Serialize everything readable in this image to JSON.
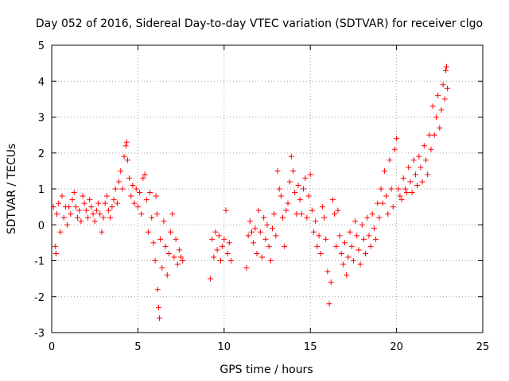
{
  "chart_data": {
    "type": "scatter",
    "title": "Day 052 of 2016, Sidereal Day-to-day VTEC variation (SDTVAR) for receiver clgo",
    "xlabel": "GPS time / hours",
    "ylabel": "SDTVAR / TECUs",
    "xlim": [
      0,
      25
    ],
    "ylim": [
      -3,
      5
    ],
    "xticks": [
      "0",
      "5",
      "10",
      "15",
      "20",
      "25"
    ],
    "yticks": [
      "-3",
      "-2",
      "-1",
      "0",
      "1",
      "2",
      "3",
      "4",
      "5"
    ],
    "grid": true,
    "marker": "+",
    "color": "#ff0000",
    "series": [
      {
        "name": "SDTVAR",
        "points": [
          [
            0.1,
            0.5
          ],
          [
            0.2,
            -0.6
          ],
          [
            0.25,
            -0.8
          ],
          [
            0.3,
            0.3
          ],
          [
            0.4,
            0.6
          ],
          [
            0.5,
            -0.2
          ],
          [
            0.6,
            0.8
          ],
          [
            0.7,
            0.2
          ],
          [
            0.8,
            0.5
          ],
          [
            0.9,
            0.0
          ],
          [
            1.0,
            0.5
          ],
          [
            1.1,
            0.3
          ],
          [
            1.2,
            0.7
          ],
          [
            1.3,
            0.9
          ],
          [
            1.4,
            0.5
          ],
          [
            1.5,
            0.2
          ],
          [
            1.6,
            0.4
          ],
          [
            1.7,
            0.1
          ],
          [
            1.8,
            0.8
          ],
          [
            1.9,
            0.6
          ],
          [
            2.0,
            0.4
          ],
          [
            2.1,
            0.2
          ],
          [
            2.2,
            0.7
          ],
          [
            2.3,
            0.5
          ],
          [
            2.4,
            0.3
          ],
          [
            2.5,
            0.1
          ],
          [
            2.6,
            0.4
          ],
          [
            2.7,
            0.6
          ],
          [
            2.8,
            0.3
          ],
          [
            2.9,
            -0.2
          ],
          [
            3.0,
            0.2
          ],
          [
            3.1,
            0.6
          ],
          [
            3.2,
            0.8
          ],
          [
            3.3,
            0.4
          ],
          [
            3.4,
            0.2
          ],
          [
            3.5,
            0.5
          ],
          [
            3.6,
            0.7
          ],
          [
            3.7,
            1.0
          ],
          [
            3.8,
            0.6
          ],
          [
            3.9,
            1.2
          ],
          [
            4.0,
            1.5
          ],
          [
            4.1,
            1.0
          ],
          [
            4.2,
            1.9
          ],
          [
            4.3,
            2.2
          ],
          [
            4.35,
            2.3
          ],
          [
            4.4,
            1.8
          ],
          [
            4.5,
            1.3
          ],
          [
            4.6,
            0.8
          ],
          [
            4.7,
            1.1
          ],
          [
            4.8,
            0.6
          ],
          [
            4.9,
            1.0
          ],
          [
            5.0,
            0.5
          ],
          [
            5.1,
            0.9
          ],
          [
            5.2,
            0.3
          ],
          [
            5.3,
            1.3
          ],
          [
            5.4,
            1.4
          ],
          [
            5.5,
            0.7
          ],
          [
            5.6,
            -0.2
          ],
          [
            5.7,
            0.9
          ],
          [
            5.8,
            0.2
          ],
          [
            5.9,
            -0.5
          ],
          [
            6.0,
            -1.0
          ],
          [
            6.05,
            0.8
          ],
          [
            6.1,
            0.3
          ],
          [
            6.15,
            -1.8
          ],
          [
            6.2,
            -2.3
          ],
          [
            6.25,
            -2.6
          ],
          [
            6.3,
            -0.4
          ],
          [
            6.4,
            -1.2
          ],
          [
            6.5,
            0.1
          ],
          [
            6.6,
            -0.6
          ],
          [
            6.7,
            -1.4
          ],
          [
            6.8,
            -0.8
          ],
          [
            6.9,
            -0.2
          ],
          [
            7.0,
            0.3
          ],
          [
            7.1,
            -0.9
          ],
          [
            7.2,
            -0.4
          ],
          [
            7.3,
            -1.1
          ],
          [
            7.4,
            -0.7
          ],
          [
            7.5,
            -0.9
          ],
          [
            7.6,
            -1.0
          ],
          [
            9.2,
            -1.5
          ],
          [
            9.3,
            -0.4
          ],
          [
            9.4,
            -0.9
          ],
          [
            9.5,
            -0.2
          ],
          [
            9.6,
            -0.7
          ],
          [
            9.7,
            -0.3
          ],
          [
            9.8,
            -1.0
          ],
          [
            9.9,
            -0.6
          ],
          [
            10.0,
            -0.4
          ],
          [
            10.1,
            0.4
          ],
          [
            10.2,
            -0.8
          ],
          [
            10.3,
            -0.5
          ],
          [
            10.4,
            -1.0
          ],
          [
            11.3,
            -1.2
          ],
          [
            11.4,
            -0.3
          ],
          [
            11.5,
            0.1
          ],
          [
            11.6,
            -0.2
          ],
          [
            11.7,
            -0.5
          ],
          [
            11.8,
            -0.1
          ],
          [
            11.9,
            -0.8
          ],
          [
            12.0,
            0.4
          ],
          [
            12.1,
            -0.2
          ],
          [
            12.2,
            -0.9
          ],
          [
            12.3,
            0.2
          ],
          [
            12.4,
            -0.4
          ],
          [
            12.5,
            0.0
          ],
          [
            12.6,
            -0.6
          ],
          [
            12.7,
            -1.0
          ],
          [
            12.8,
            -0.1
          ],
          [
            12.9,
            0.3
          ],
          [
            13.0,
            -0.3
          ],
          [
            13.1,
            1.5
          ],
          [
            13.2,
            1.0
          ],
          [
            13.3,
            0.8
          ],
          [
            13.4,
            0.2
          ],
          [
            13.5,
            -0.6
          ],
          [
            13.6,
            0.4
          ],
          [
            13.7,
            0.6
          ],
          [
            13.8,
            1.2
          ],
          [
            13.9,
            1.9
          ],
          [
            14.0,
            1.5
          ],
          [
            14.1,
            0.9
          ],
          [
            14.2,
            0.3
          ],
          [
            14.3,
            1.1
          ],
          [
            14.4,
            0.7
          ],
          [
            14.5,
            0.3
          ],
          [
            14.6,
            1.0
          ],
          [
            14.7,
            1.3
          ],
          [
            14.8,
            0.2
          ],
          [
            14.9,
            0.8
          ],
          [
            15.0,
            1.4
          ],
          [
            15.1,
            0.4
          ],
          [
            15.2,
            -0.2
          ],
          [
            15.3,
            0.1
          ],
          [
            15.4,
            -0.6
          ],
          [
            15.5,
            -0.3
          ],
          [
            15.6,
            -0.8
          ],
          [
            15.7,
            0.5
          ],
          [
            15.8,
            0.2
          ],
          [
            15.9,
            -0.4
          ],
          [
            16.0,
            -1.3
          ],
          [
            16.1,
            -2.2
          ],
          [
            16.2,
            -1.6
          ],
          [
            16.3,
            0.7
          ],
          [
            16.4,
            0.3
          ],
          [
            16.5,
            -0.6
          ],
          [
            16.6,
            0.4
          ],
          [
            16.7,
            -0.3
          ],
          [
            16.8,
            -0.8
          ],
          [
            16.9,
            -1.1
          ],
          [
            17.0,
            -0.5
          ],
          [
            17.1,
            -1.4
          ],
          [
            17.2,
            -0.9
          ],
          [
            17.3,
            -0.2
          ],
          [
            17.4,
            -0.6
          ],
          [
            17.5,
            -1.0
          ],
          [
            17.6,
            0.1
          ],
          [
            17.7,
            -0.3
          ],
          [
            17.8,
            -0.7
          ],
          [
            17.9,
            -1.1
          ],
          [
            18.0,
            0.0
          ],
          [
            18.1,
            -0.4
          ],
          [
            18.2,
            -0.8
          ],
          [
            18.3,
            0.2
          ],
          [
            18.4,
            -0.3
          ],
          [
            18.5,
            -0.6
          ],
          [
            18.6,
            0.3
          ],
          [
            18.7,
            -0.1
          ],
          [
            18.8,
            -0.4
          ],
          [
            18.9,
            0.6
          ],
          [
            19.0,
            0.2
          ],
          [
            19.1,
            1.0
          ],
          [
            19.2,
            0.6
          ],
          [
            19.3,
            1.5
          ],
          [
            19.4,
            0.8
          ],
          [
            19.5,
            0.3
          ],
          [
            19.6,
            1.8
          ],
          [
            19.7,
            1.0
          ],
          [
            19.8,
            0.5
          ],
          [
            19.9,
            2.1
          ],
          [
            20.0,
            2.4
          ],
          [
            20.1,
            1.0
          ],
          [
            20.2,
            0.8
          ],
          [
            20.3,
            0.7
          ],
          [
            20.4,
            1.3
          ],
          [
            20.5,
            1.0
          ],
          [
            20.6,
            0.9
          ],
          [
            20.7,
            1.6
          ],
          [
            20.8,
            1.2
          ],
          [
            20.9,
            0.9
          ],
          [
            21.0,
            1.8
          ],
          [
            21.1,
            1.4
          ],
          [
            21.2,
            1.1
          ],
          [
            21.3,
            1.9
          ],
          [
            21.4,
            1.6
          ],
          [
            21.5,
            1.2
          ],
          [
            21.6,
            2.2
          ],
          [
            21.7,
            1.8
          ],
          [
            21.8,
            1.4
          ],
          [
            21.9,
            2.5
          ],
          [
            22.0,
            2.1
          ],
          [
            22.1,
            3.3
          ],
          [
            22.2,
            2.5
          ],
          [
            22.3,
            3.0
          ],
          [
            22.4,
            3.6
          ],
          [
            22.5,
            2.7
          ],
          [
            22.6,
            3.2
          ],
          [
            22.7,
            3.9
          ],
          [
            22.8,
            3.5
          ],
          [
            22.85,
            4.3
          ],
          [
            22.9,
            4.4
          ],
          [
            22.95,
            3.8
          ]
        ]
      }
    ]
  }
}
